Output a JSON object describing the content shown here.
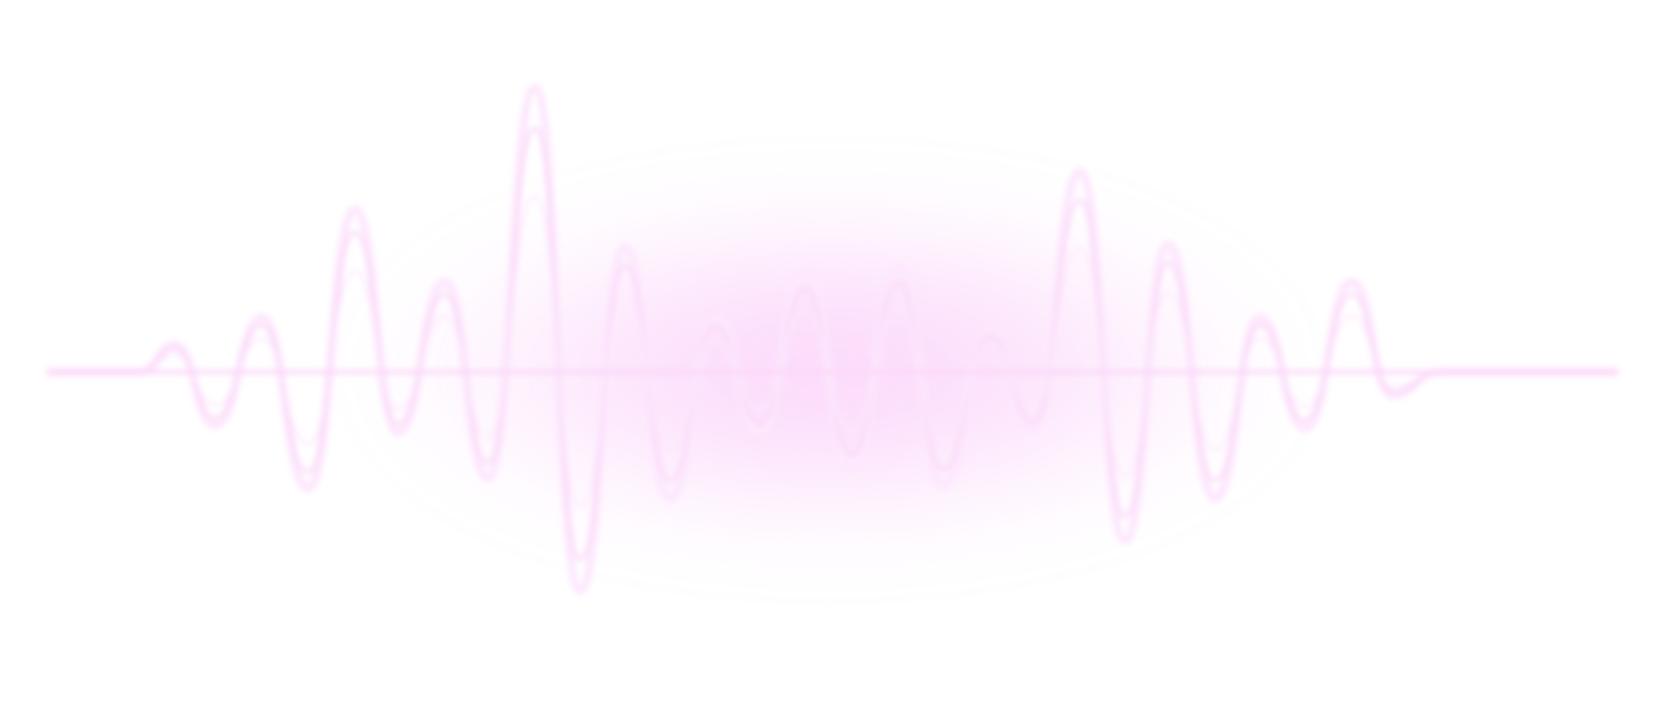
{
  "scene": {
    "subject": "sound-wave",
    "colors": {
      "background": "#ffffff",
      "glow": "#f7a8f5",
      "wave": "#fde8fd",
      "wave_inner": "#f9d4f7",
      "baseline": "#fbd6f8"
    },
    "glow_level": 0.55
  }
}
